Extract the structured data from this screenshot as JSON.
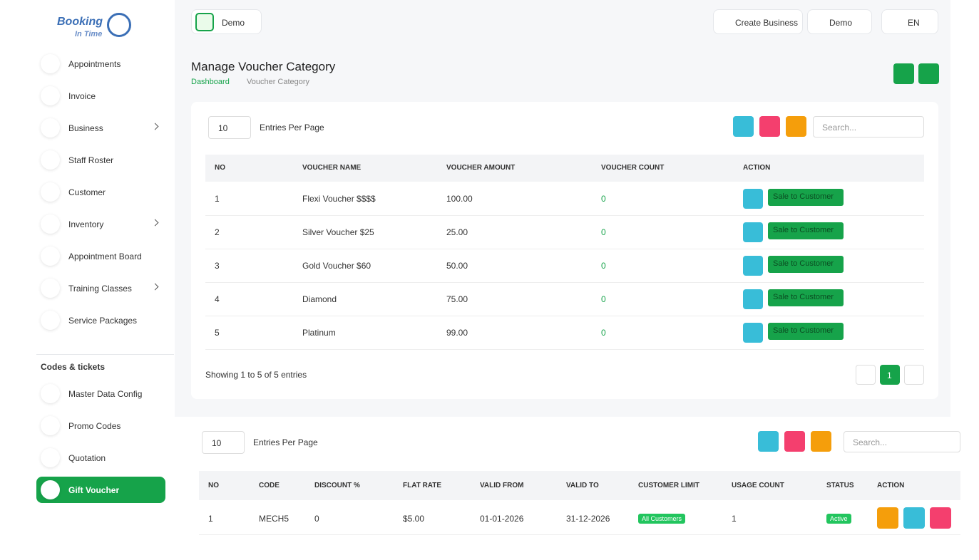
{
  "logo": {
    "line1": "Booking",
    "line2": "In Time"
  },
  "sidebar": {
    "items": [
      "Appointments",
      "Invoice",
      "Business",
      "Staff Roster",
      "Customer",
      "Inventory",
      "Appointment Board",
      "Training Classes",
      "Service Packages"
    ],
    "section": "Codes & tickets",
    "items2": [
      "Master Data Config",
      "Promo Codes",
      "Quotation",
      "Gift Voucher"
    ]
  },
  "topbar": {
    "business": "Demo",
    "create": "Create Business",
    "workspace": "Demo",
    "language": "EN"
  },
  "header": {
    "title": "Manage Voucher Category",
    "breadcrumb": [
      "Dashboard",
      "Voucher Category"
    ]
  },
  "table1": {
    "page_size": "10",
    "entries_label": "Entries Per Page",
    "search_placeholder": "Search...",
    "columns": [
      "NO",
      "VOUCHER NAME",
      "VOUCHER AMOUNT",
      "VOUCHER COUNT",
      "ACTION"
    ],
    "rows": [
      [
        "1",
        "Flexi Voucher $$$$",
        "100.00",
        "0"
      ],
      [
        "2",
        "Silver Voucher $25",
        "25.00",
        "0"
      ],
      [
        "3",
        "Gold Voucher $60",
        "50.00",
        "0"
      ],
      [
        "4",
        "Diamond",
        "75.00",
        "0"
      ],
      [
        "5",
        "Platinum",
        "99.00",
        "0"
      ]
    ],
    "action": "Sale to Customer",
    "footer": "Showing 1 to 5 of 5 entries",
    "page": "1"
  },
  "table2": {
    "page_size": "10",
    "entries_label": "Entries Per Page",
    "search_placeholder": "Search...",
    "columns": [
      "NO",
      "CODE",
      "DISCOUNT %",
      "FLAT RATE",
      "VALID FROM",
      "VALID TO",
      "CUSTOMER LIMIT",
      "USAGE COUNT",
      "STATUS",
      "ACTION"
    ],
    "rows": [
      [
        "1",
        "MECH5",
        "0",
        "$5.00",
        "01-01-2026",
        "31-12-2026",
        "All Customers",
        "1",
        "Active"
      ]
    ]
  }
}
